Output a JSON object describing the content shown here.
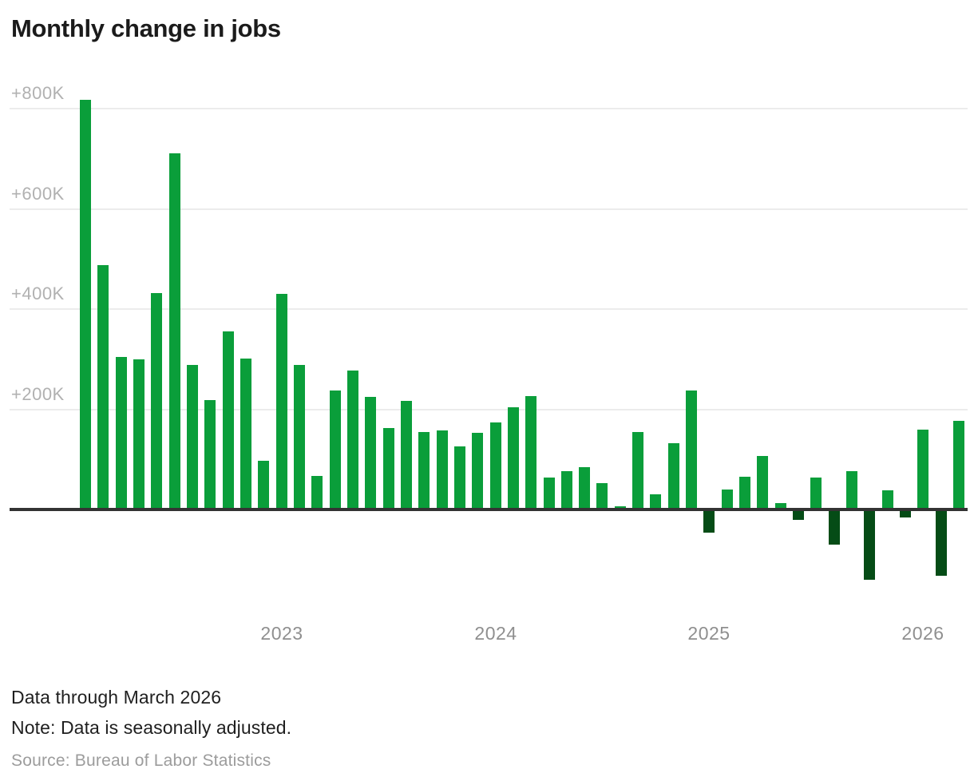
{
  "title": "Monthly change in jobs",
  "chart_data": {
    "type": "bar",
    "unit": "thousands of jobs (K)",
    "x": [
      "Feb 2022",
      "Mar 2022",
      "Apr 2022",
      "May 2022",
      "Jun 2022",
      "Jul 2022",
      "Aug 2022",
      "Sep 2022",
      "Oct 2022",
      "Nov 2022",
      "Dec 2022",
      "Jan 2023",
      "Feb 2023",
      "Mar 2023",
      "Apr 2023",
      "May 2023",
      "Jun 2023",
      "Jul 2023",
      "Aug 2023",
      "Sep 2023",
      "Oct 2023",
      "Nov 2023",
      "Dec 2023",
      "Jan 2024",
      "Feb 2024",
      "Mar 2024",
      "Apr 2024",
      "May 2024",
      "Jun 2024",
      "Jul 2024",
      "Aug 2024",
      "Sep 2024",
      "Oct 2024",
      "Nov 2024",
      "Dec 2024",
      "Jan 2025",
      "Feb 2025",
      "Mar 2025",
      "Apr 2025",
      "May 2025",
      "Jun 2025",
      "Jul 2025",
      "Aug 2025",
      "Sep 2025",
      "Oct 2025",
      "Nov 2025",
      "Dec 2025",
      "Jan 2026",
      "Feb 2026",
      "Mar 2026"
    ],
    "values_k": [
      818,
      488,
      305,
      299,
      432,
      710,
      288,
      218,
      355,
      301,
      98,
      430,
      289,
      67,
      238,
      278,
      224,
      163,
      216,
      155,
      158,
      126,
      153,
      173,
      204,
      227,
      64,
      77,
      85,
      52,
      7,
      155,
      31,
      133,
      237,
      -47,
      40,
      66,
      107,
      12,
      -21,
      64,
      -70,
      76,
      -141,
      39,
      -16,
      160,
      -132,
      177
    ],
    "y_axis": {
      "ticks": [
        {
          "label": "+800K",
          "value_k": 800
        },
        {
          "label": "+600K",
          "value_k": 600
        },
        {
          "label": "+400K",
          "value_k": 400
        },
        {
          "label": "+200K",
          "value_k": 200
        }
      ]
    },
    "x_axis": {
      "ticks": [
        {
          "label": "2023",
          "month_index": 11
        },
        {
          "label": "2024",
          "month_index": 23
        },
        {
          "label": "2025",
          "month_index": 35
        },
        {
          "label": "2026",
          "month_index": 47
        }
      ]
    },
    "colors": {
      "positive_bar": "#0a9e3a",
      "negative_bar": "#054c16",
      "zero_axis": "#333333",
      "gridline": "#ececec",
      "y_tick_text": "#b1b1b1",
      "x_tick_text": "#8f8f8f"
    },
    "grid": true,
    "legend": "none"
  },
  "footer": {
    "data_through": "Data through March 2026",
    "note": "Note: Data is seasonally adjusted.",
    "source": "Source: Bureau of Labor Statistics"
  }
}
